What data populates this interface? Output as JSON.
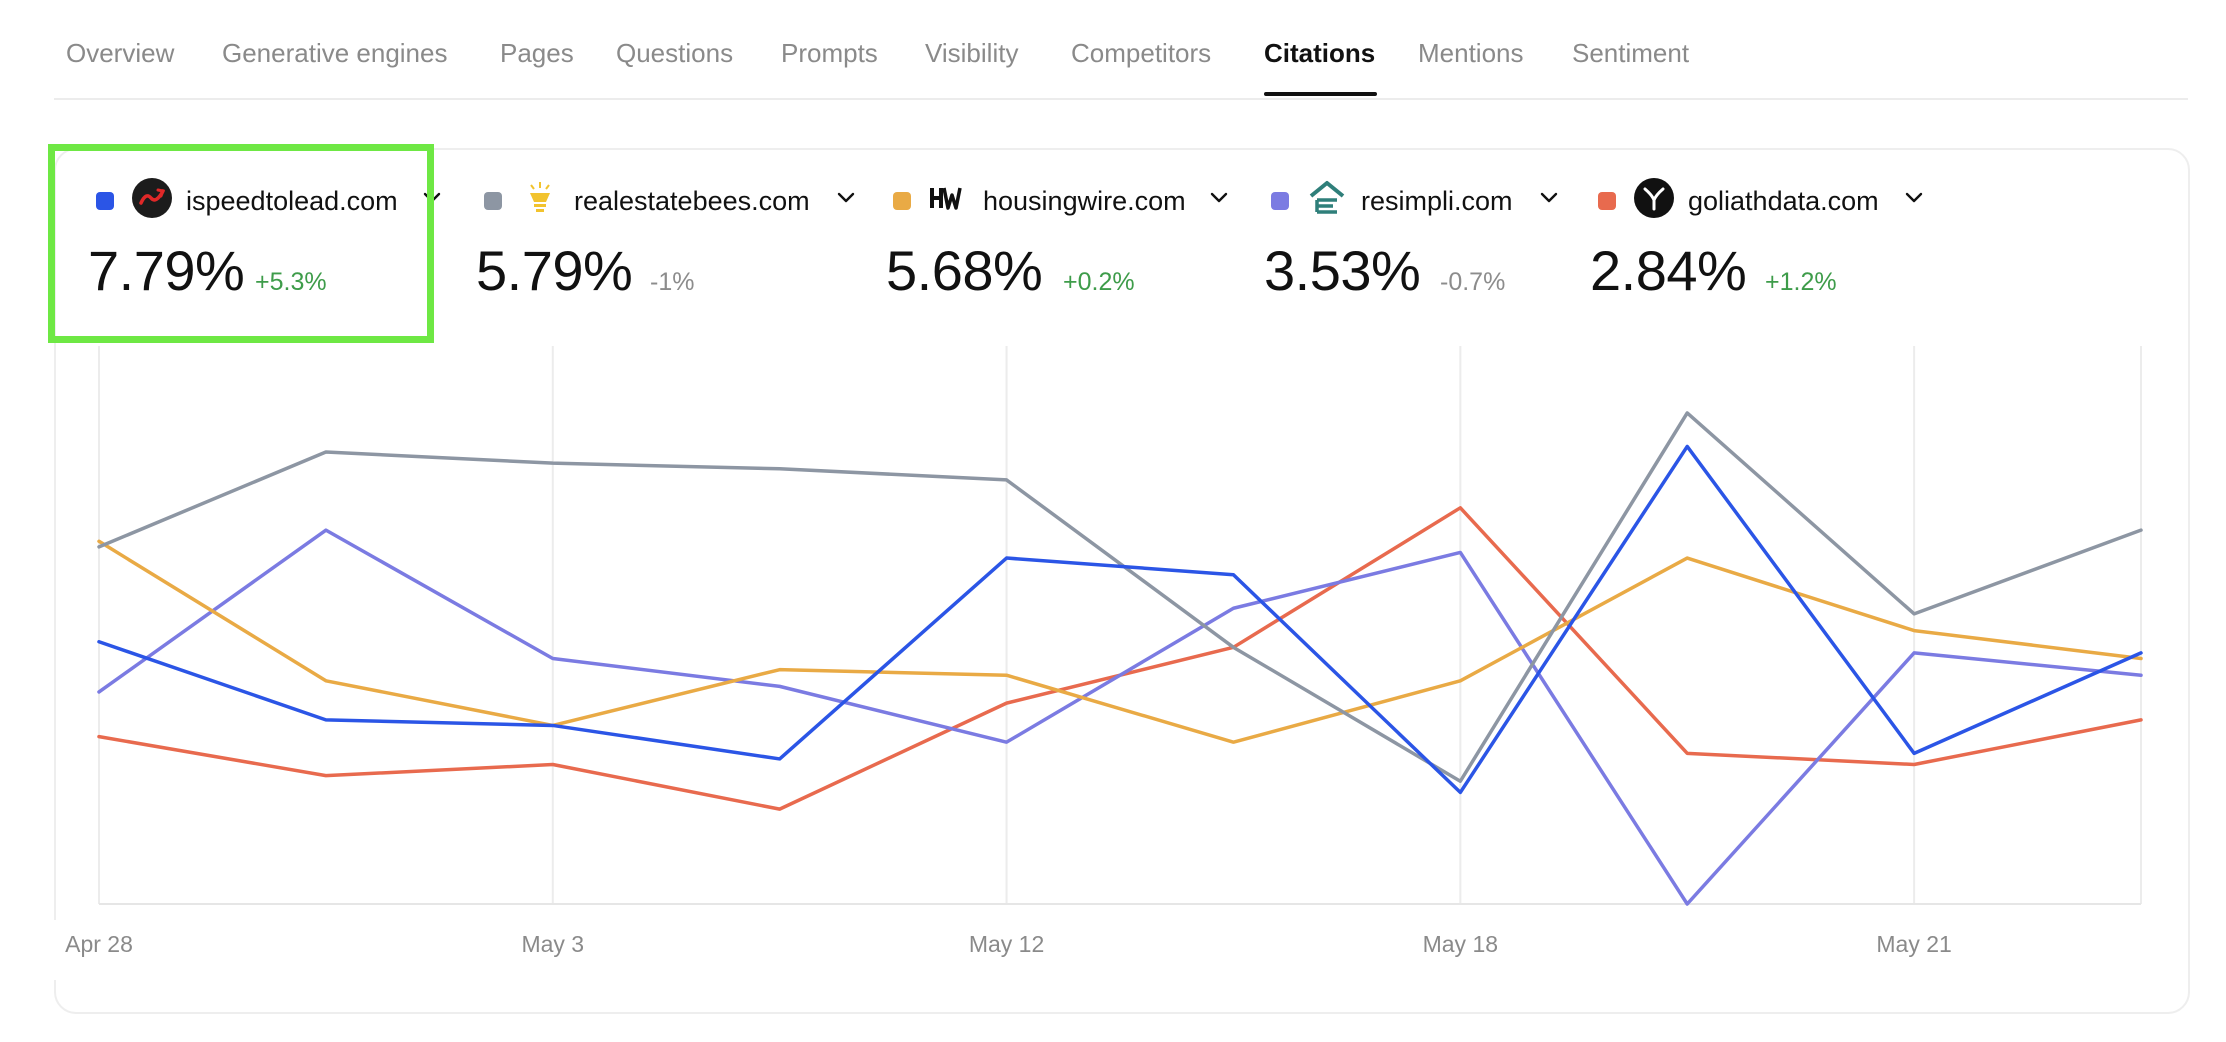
{
  "tabs": [
    {
      "label": "Overview",
      "active": false
    },
    {
      "label": "Generative engines",
      "active": false
    },
    {
      "label": "Pages",
      "active": false
    },
    {
      "label": "Questions",
      "active": false
    },
    {
      "label": "Prompts",
      "active": false
    },
    {
      "label": "Visibility",
      "active": false
    },
    {
      "label": "Competitors",
      "active": false
    },
    {
      "label": "Citations",
      "active": true
    },
    {
      "label": "Mentions",
      "active": false
    },
    {
      "label": "Sentiment",
      "active": false
    }
  ],
  "legend": [
    {
      "domain": "ispeedtolead.com",
      "value": "7.79%",
      "delta": "+5.3%",
      "trend": "positive",
      "color": "#2b55e6",
      "icon": "ispeedtolead-logo-icon"
    },
    {
      "domain": "realestatebees.com",
      "value": "5.79%",
      "delta": "-1%",
      "trend": "negative",
      "color": "#8d96a3",
      "icon": "realestatebees-logo-icon"
    },
    {
      "domain": "housingwire.com",
      "value": "5.68%",
      "delta": "+0.2%",
      "trend": "positive",
      "color": "#e9aa45",
      "icon": "housingwire-logo-icon"
    },
    {
      "domain": "resimpli.com",
      "value": "3.53%",
      "delta": "-0.7%",
      "trend": "negative",
      "color": "#7b7be2",
      "icon": "resimpli-logo-icon"
    },
    {
      "domain": "goliathdata.com",
      "value": "2.84%",
      "delta": "+1.2%",
      "trend": "positive",
      "color": "#e86a4e",
      "icon": "goliathdata-logo-icon"
    }
  ],
  "highlighted_item": "ispeedtolead.com",
  "chart_data": {
    "type": "line",
    "x_tick_labels": [
      "Apr 28",
      "May 3",
      "May 12",
      "May 18",
      "May 21"
    ],
    "points_per_series": 10,
    "ylim": [
      0,
      100
    ],
    "grid": "vertical",
    "series": [
      {
        "name": "ispeedtolead.com",
        "color": "#2b55e6",
        "values": [
          47,
          33,
          32,
          26,
          62,
          59,
          20,
          82,
          27,
          45
        ]
      },
      {
        "name": "realestatebees.com",
        "color": "#8d96a3",
        "values": [
          64,
          81,
          79,
          78,
          76,
          46,
          22,
          88,
          52,
          67
        ]
      },
      {
        "name": "housingwire.com",
        "color": "#e9aa45",
        "values": [
          65,
          40,
          32,
          42,
          41,
          29,
          40,
          62,
          49,
          44
        ]
      },
      {
        "name": "resimpli.com",
        "color": "#7b7be2",
        "values": [
          38,
          67,
          44,
          39,
          29,
          53,
          63,
          0,
          45,
          41
        ]
      },
      {
        "name": "goliathdata.com",
        "color": "#e86a4e",
        "values": [
          30,
          23,
          25,
          17,
          36,
          46,
          71,
          27,
          25,
          33
        ]
      }
    ]
  }
}
